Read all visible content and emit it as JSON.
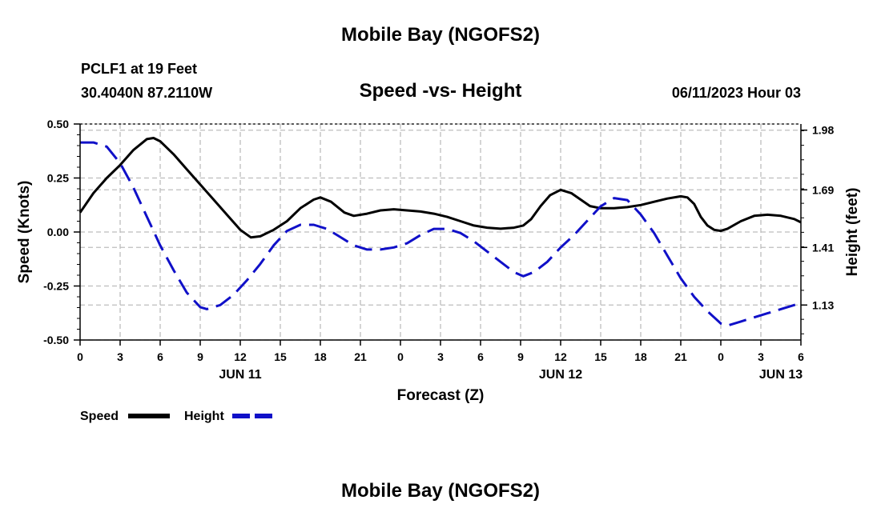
{
  "page": {
    "main_title": "Mobile Bay (NGOFS2)",
    "station": "PCLF1 at 19 Feet",
    "coords": "30.4040N  87.2110W",
    "subtitle": "Speed -vs- Height",
    "datetime": "06/11/2023 Hour 03",
    "bottom_title": "Mobile Bay (NGOFS2)"
  },
  "chart_data": {
    "type": "line",
    "title": "Speed -vs- Height",
    "xlabel": "Forecast (Z)",
    "ylabel_left": "Speed (Knots)",
    "ylabel_right": "Height (feet)",
    "x_range_hours": [
      0,
      54
    ],
    "x_ticks": [
      {
        "h": 0,
        "label": "0"
      },
      {
        "h": 3,
        "label": "3"
      },
      {
        "h": 6,
        "label": "6"
      },
      {
        "h": 9,
        "label": "9"
      },
      {
        "h": 12,
        "label": "12"
      },
      {
        "h": 15,
        "label": "15"
      },
      {
        "h": 18,
        "label": "18"
      },
      {
        "h": 21,
        "label": "21"
      },
      {
        "h": 24,
        "label": "0"
      },
      {
        "h": 27,
        "label": "3"
      },
      {
        "h": 30,
        "label": "6"
      },
      {
        "h": 33,
        "label": "9"
      },
      {
        "h": 36,
        "label": "12"
      },
      {
        "h": 39,
        "label": "15"
      },
      {
        "h": 42,
        "label": "18"
      },
      {
        "h": 45,
        "label": "21"
      },
      {
        "h": 48,
        "label": "0"
      },
      {
        "h": 51,
        "label": "3"
      },
      {
        "h": 54,
        "label": "6"
      }
    ],
    "day_labels": [
      {
        "h": 12,
        "label": "JUN 11"
      },
      {
        "h": 36,
        "label": "JUN 12"
      },
      {
        "h": 52.5,
        "label": "JUN 13"
      }
    ],
    "y_left": {
      "range": [
        -0.5,
        0.5
      ],
      "ticks": [
        "0.50",
        "0.25",
        "0.00",
        "-0.25",
        "-0.50"
      ],
      "tick_values": [
        0.5,
        0.25,
        0,
        -0.25,
        -0.5
      ]
    },
    "y_right": {
      "range": [
        0.96,
        2.01
      ],
      "ticks": [
        "1.98",
        "1.69",
        "1.41",
        "1.13"
      ],
      "tick_values": [
        1.98,
        1.69,
        1.41,
        1.13
      ]
    },
    "grid": true,
    "legend_position": "bottom-left",
    "series": [
      {
        "name": "Speed",
        "axis": "left",
        "color": "#000000",
        "style": "solid",
        "points": [
          [
            0,
            0.09
          ],
          [
            1,
            0.18
          ],
          [
            2,
            0.25
          ],
          [
            3,
            0.31
          ],
          [
            4,
            0.38
          ],
          [
            5,
            0.43
          ],
          [
            5.5,
            0.435
          ],
          [
            6,
            0.42
          ],
          [
            7,
            0.36
          ],
          [
            8,
            0.29
          ],
          [
            9,
            0.22
          ],
          [
            10,
            0.15
          ],
          [
            11,
            0.08
          ],
          [
            12,
            0.01
          ],
          [
            12.8,
            -0.025
          ],
          [
            13.5,
            -0.02
          ],
          [
            14.5,
            0.01
          ],
          [
            15.5,
            0.05
          ],
          [
            16.5,
            0.11
          ],
          [
            17.5,
            0.15
          ],
          [
            18,
            0.16
          ],
          [
            18.8,
            0.14
          ],
          [
            19.8,
            0.09
          ],
          [
            20.5,
            0.075
          ],
          [
            21.5,
            0.085
          ],
          [
            22.5,
            0.1
          ],
          [
            23.5,
            0.105
          ],
          [
            24.5,
            0.1
          ],
          [
            25.5,
            0.095
          ],
          [
            26.5,
            0.085
          ],
          [
            27.5,
            0.07
          ],
          [
            28.5,
            0.05
          ],
          [
            29.5,
            0.03
          ],
          [
            30.5,
            0.02
          ],
          [
            31.5,
            0.015
          ],
          [
            32.5,
            0.02
          ],
          [
            33.2,
            0.03
          ],
          [
            33.8,
            0.06
          ],
          [
            34.5,
            0.12
          ],
          [
            35.2,
            0.17
          ],
          [
            36,
            0.195
          ],
          [
            36.8,
            0.18
          ],
          [
            37.5,
            0.15
          ],
          [
            38.2,
            0.12
          ],
          [
            39,
            0.11
          ],
          [
            40,
            0.11
          ],
          [
            41,
            0.115
          ],
          [
            42,
            0.125
          ],
          [
            43,
            0.14
          ],
          [
            44,
            0.155
          ],
          [
            45,
            0.165
          ],
          [
            45.5,
            0.16
          ],
          [
            46,
            0.13
          ],
          [
            46.5,
            0.07
          ],
          [
            47,
            0.03
          ],
          [
            47.5,
            0.01
          ],
          [
            48,
            0.005
          ],
          [
            48.5,
            0.015
          ],
          [
            49.5,
            0.05
          ],
          [
            50.5,
            0.075
          ],
          [
            51.5,
            0.08
          ],
          [
            52.5,
            0.075
          ],
          [
            53.5,
            0.06
          ],
          [
            54,
            0.045
          ]
        ]
      },
      {
        "name": "Height",
        "axis": "right",
        "color": "#1010c8",
        "style": "dashed",
        "points": [
          [
            0,
            1.92
          ],
          [
            1,
            1.92
          ],
          [
            2,
            1.9
          ],
          [
            3,
            1.82
          ],
          [
            4,
            1.7
          ],
          [
            5,
            1.56
          ],
          [
            6,
            1.42
          ],
          [
            7,
            1.3
          ],
          [
            8,
            1.19
          ],
          [
            9,
            1.12
          ],
          [
            9.5,
            1.11
          ],
          [
            10.5,
            1.13
          ],
          [
            11.5,
            1.18
          ],
          [
            12.5,
            1.25
          ],
          [
            13.5,
            1.33
          ],
          [
            14.5,
            1.42
          ],
          [
            15.5,
            1.49
          ],
          [
            16.5,
            1.52
          ],
          [
            17.5,
            1.52
          ],
          [
            18.5,
            1.5
          ],
          [
            19.5,
            1.46
          ],
          [
            20.5,
            1.42
          ],
          [
            21.5,
            1.4
          ],
          [
            22.5,
            1.4
          ],
          [
            23.5,
            1.41
          ],
          [
            24.5,
            1.43
          ],
          [
            25.5,
            1.47
          ],
          [
            26.5,
            1.5
          ],
          [
            27.5,
            1.5
          ],
          [
            28.5,
            1.48
          ],
          [
            29.5,
            1.44
          ],
          [
            30.5,
            1.39
          ],
          [
            31.5,
            1.34
          ],
          [
            32.5,
            1.29
          ],
          [
            33.2,
            1.27
          ],
          [
            34,
            1.29
          ],
          [
            35,
            1.34
          ],
          [
            36,
            1.41
          ],
          [
            37,
            1.47
          ],
          [
            38,
            1.54
          ],
          [
            39,
            1.61
          ],
          [
            40,
            1.65
          ],
          [
            41,
            1.64
          ],
          [
            42,
            1.57
          ],
          [
            43,
            1.48
          ],
          [
            44,
            1.37
          ],
          [
            45,
            1.26
          ],
          [
            46,
            1.17
          ],
          [
            47,
            1.1
          ],
          [
            48,
            1.04
          ],
          [
            48.5,
            1.03
          ],
          [
            49.5,
            1.05
          ],
          [
            50.5,
            1.07
          ],
          [
            51.5,
            1.09
          ],
          [
            52.5,
            1.11
          ],
          [
            53.5,
            1.13
          ],
          [
            54,
            1.14
          ]
        ]
      }
    ]
  }
}
